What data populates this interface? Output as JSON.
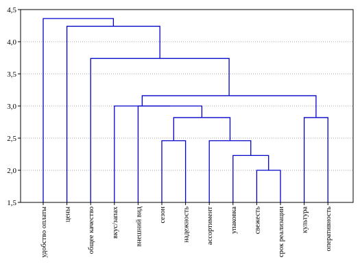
{
  "chart_data": {
    "type": "dendrogram",
    "title": "",
    "xlabel": "",
    "ylabel": "",
    "ylim": [
      1.5,
      4.5
    ],
    "y_ticks": [
      "1,5",
      "2,0",
      "2,5",
      "3,0",
      "3,5",
      "4,0",
      "4,5"
    ],
    "y_tick_values": [
      1.5,
      2.0,
      2.5,
      3.0,
      3.5,
      4.0,
      4.5
    ],
    "grid": "horizontal-dotted",
    "leaves": [
      "удобство оплаты",
      "цены",
      "общее качество",
      "вкус/запах",
      "внешний вид",
      "сезон",
      "надежность",
      "ассортимент",
      "упаковка",
      "свежесть",
      "срок реализации",
      "культура",
      "оперативность"
    ],
    "merges": [
      {
        "left": [
          "свежесть"
        ],
        "right": [
          "срок реализации"
        ],
        "height": 2.0
      },
      {
        "left": [
          "упаковка"
        ],
        "right": [
          "свежесть",
          "срок реализации"
        ],
        "height": 2.23
      },
      {
        "left": [
          "ассортимент"
        ],
        "right": [
          "упаковка",
          "свежесть",
          "срок реализации"
        ],
        "height": 2.46
      },
      {
        "left": [
          "сезон"
        ],
        "right": [
          "надежность"
        ],
        "height": 2.46
      },
      {
        "left": [
          "сезон",
          "надежность"
        ],
        "right": [
          "ассортимент",
          "упаковка",
          "свежесть",
          "срок реализации"
        ],
        "height": 2.82
      },
      {
        "left": [
          "культура"
        ],
        "right": [
          "оперативность"
        ],
        "height": 2.82
      },
      {
        "left": [
          "внешний вид"
        ],
        "right": [
          "сезон",
          "надежность",
          "ассортимент",
          "упаковка",
          "свежесть",
          "срок реализации"
        ],
        "height": 3.0
      },
      {
        "left": [
          "вкус/запах"
        ],
        "right": [
          "внешний вид",
          "сезон",
          "надежность",
          "ассортимент",
          "упаковка",
          "свежесть",
          "срок реализации"
        ],
        "height": 3.0
      },
      {
        "left": [
          "вкус/запах",
          "внешний вид",
          "сезон",
          "надежность",
          "ассортимент",
          "упаковка",
          "свежесть",
          "срок реализации"
        ],
        "right": [
          "культура",
          "оперативность"
        ],
        "height": 3.16
      },
      {
        "left": [
          "общее качество"
        ],
        "right": [
          "вкус/запах",
          "внешний вид",
          "сезон",
          "надежность",
          "ассортимент",
          "упаковка",
          "свежесть",
          "срок реализации",
          "культура",
          "оперативность"
        ],
        "height": 3.74
      },
      {
        "left": [
          "цены"
        ],
        "right": [
          "общее качество",
          "вкус/запах",
          "внешний вид",
          "сезон",
          "надежность",
          "ассортимент",
          "упаковка",
          "свежесть",
          "срок реализации",
          "культура",
          "оперативность"
        ],
        "height": 4.24
      },
      {
        "left": [
          "удобство оплаты"
        ],
        "right": [
          "цены",
          "общее качество",
          "вкус/запах",
          "внешний вид",
          "сезон",
          "надежность",
          "ассортимент",
          "упаковка",
          "свежесть",
          "срок реализации",
          "культура",
          "оперативность"
        ],
        "height": 4.36
      }
    ],
    "colors": {
      "line": "#0000cc",
      "axis": "#000000",
      "grid": "#a0a0a0",
      "background": "#ffffff"
    }
  }
}
